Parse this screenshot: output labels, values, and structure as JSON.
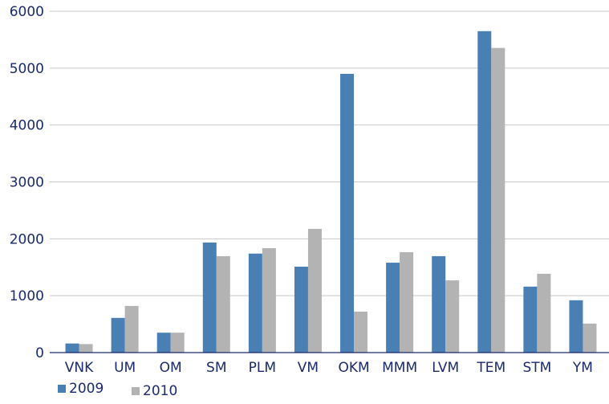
{
  "chart_data": {
    "type": "bar",
    "title": "",
    "xlabel": "",
    "ylabel": "",
    "categories": [
      "VNK",
      "UM",
      "OM",
      "SM",
      "PLM",
      "VM",
      "OKM",
      "MMM",
      "LVM",
      "TEM",
      "STM",
      "YM"
    ],
    "series": [
      {
        "name": "2009",
        "color": "#4a7fb3",
        "values": [
          160,
          610,
          350,
          1935,
          1740,
          1510,
          4900,
          1580,
          1695,
          5650,
          1160,
          920
        ]
      },
      {
        "name": "2010",
        "color": "#b3b3b3",
        "values": [
          150,
          820,
          350,
          1695,
          1835,
          2175,
          720,
          1765,
          1270,
          5355,
          1385,
          510
        ]
      }
    ],
    "ylim": [
      0,
      6000
    ],
    "yticks": [
      0,
      1000,
      2000,
      3000,
      4000,
      5000,
      6000
    ],
    "grid": true,
    "legend_position": "bottom-left"
  }
}
